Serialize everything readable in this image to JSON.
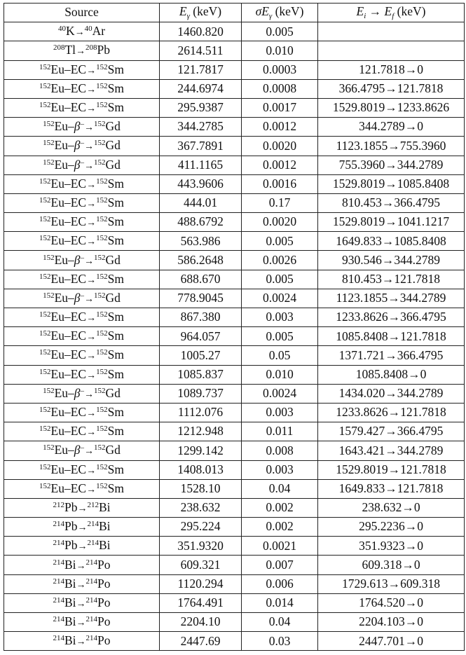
{
  "header": {
    "source": "Source",
    "egamma": {
      "sym": "E",
      "sub": "γ",
      "unit": " (keV)"
    },
    "sigma": {
      "pre": "σE",
      "sub": "γ",
      "unit": " (keV)"
    },
    "transition": {
      "ei": "E",
      "ei_sub": "i",
      "arrow": " → ",
      "ef": "E",
      "ef_sub": "f",
      "unit": " (keV)"
    }
  },
  "arrow": "→",
  "rows": [
    {
      "pm": "40",
      "p": "K",
      "mode": "",
      "msup": "",
      "dm": "40",
      "d": "Ar",
      "e": "1460.820",
      "s": "0.005",
      "t": ""
    },
    {
      "pm": "208",
      "p": "Tl",
      "mode": "",
      "msup": "",
      "dm": "208",
      "d": "Pb",
      "e": "2614.511",
      "s": "0.010",
      "t": ""
    },
    {
      "pm": "152",
      "p": "Eu–EC",
      "mode": "",
      "msup": "",
      "dm": "152",
      "d": "Sm",
      "e": "121.7817",
      "s": "0.0003",
      "t": "121.7818→0"
    },
    {
      "pm": "152",
      "p": "Eu–EC",
      "mode": "",
      "msup": "",
      "dm": "152",
      "d": "Sm",
      "e": "244.6974",
      "s": "0.0008",
      "t": "366.4795→121.7818"
    },
    {
      "pm": "152",
      "p": "Eu–EC",
      "mode": "",
      "msup": "",
      "dm": "152",
      "d": "Sm",
      "e": "295.9387",
      "s": "0.0017",
      "t": "1529.8019→1233.8626"
    },
    {
      "pm": "152",
      "p": "Eu–",
      "mode": "β",
      "msup": "–",
      "dm": "152",
      "d": "Gd",
      "e": "344.2785",
      "s": "0.0012",
      "t": "344.2789→0"
    },
    {
      "pm": "152",
      "p": "Eu–",
      "mode": "β",
      "msup": "–",
      "dm": "152",
      "d": "Gd",
      "e": "367.7891",
      "s": "0.0020",
      "t": "1123.1855→755.3960"
    },
    {
      "pm": "152",
      "p": "Eu–",
      "mode": "β",
      "msup": "–",
      "dm": "152",
      "d": "Gd",
      "e": "411.1165",
      "s": "0.0012",
      "t": "755.3960→344.2789"
    },
    {
      "pm": "152",
      "p": "Eu–EC",
      "mode": "",
      "msup": "",
      "dm": "152",
      "d": "Sm",
      "e": "443.9606",
      "s": "0.0016",
      "t": "1529.8019→1085.8408"
    },
    {
      "pm": "152",
      "p": "Eu–EC",
      "mode": "",
      "msup": "",
      "dm": "152",
      "d": "Sm",
      "e": "444.01",
      "s": "0.17",
      "t": "810.453→366.4795"
    },
    {
      "pm": "152",
      "p": "Eu–EC",
      "mode": "",
      "msup": "",
      "dm": "152",
      "d": "Sm",
      "e": "488.6792",
      "s": "0.0020",
      "t": "1529.8019→1041.1217"
    },
    {
      "pm": "152",
      "p": "Eu–EC",
      "mode": "",
      "msup": "",
      "dm": "152",
      "d": "Sm",
      "e": "563.986",
      "s": "0.005",
      "t": "1649.833→1085.8408"
    },
    {
      "pm": "152",
      "p": "Eu–",
      "mode": "β",
      "msup": "–",
      "dm": "152",
      "d": "Gd",
      "e": "586.2648",
      "s": "0.0026",
      "t": "930.546→344.2789"
    },
    {
      "pm": "152",
      "p": "Eu–EC",
      "mode": "",
      "msup": "",
      "dm": "152",
      "d": "Sm",
      "e": "688.670",
      "s": "0.005",
      "t": "810.453→121.7818"
    },
    {
      "pm": "152",
      "p": "Eu–",
      "mode": "β",
      "msup": "–",
      "dm": "152",
      "d": "Gd",
      "e": "778.9045",
      "s": "0.0024",
      "t": "1123.1855→344.2789"
    },
    {
      "pm": "152",
      "p": "Eu–EC",
      "mode": "",
      "msup": "",
      "dm": "152",
      "d": "Sm",
      "e": "867.380",
      "s": "0.003",
      "t": "1233.8626→366.4795"
    },
    {
      "pm": "152",
      "p": "Eu–EC",
      "mode": "",
      "msup": "",
      "dm": "152",
      "d": "Sm",
      "e": "964.057",
      "s": "0.005",
      "t": "1085.8408→121.7818"
    },
    {
      "pm": "152",
      "p": "Eu–EC",
      "mode": "",
      "msup": "",
      "dm": "152",
      "d": "Sm",
      "e": "1005.27",
      "s": "0.05",
      "t": "1371.721→366.4795"
    },
    {
      "pm": "152",
      "p": "Eu–EC",
      "mode": "",
      "msup": "",
      "dm": "152",
      "d": "Sm",
      "e": "1085.837",
      "s": "0.010",
      "t": "1085.8408→0"
    },
    {
      "pm": "152",
      "p": "Eu–",
      "mode": "β",
      "msup": "–",
      "dm": "152",
      "d": "Gd",
      "e": "1089.737",
      "s": "0.0024",
      "t": "1434.020→344.2789"
    },
    {
      "pm": "152",
      "p": "Eu–EC",
      "mode": "",
      "msup": "",
      "dm": "152",
      "d": "Sm",
      "e": "1112.076",
      "s": "0.003",
      "t": "1233.8626→121.7818"
    },
    {
      "pm": "152",
      "p": "Eu–EC",
      "mode": "",
      "msup": "",
      "dm": "152",
      "d": "Sm",
      "e": "1212.948",
      "s": "0.011",
      "t": "1579.427→366.4795"
    },
    {
      "pm": "152",
      "p": "Eu–",
      "mode": "β",
      "msup": "–",
      "dm": "152",
      "d": "Gd",
      "e": "1299.142",
      "s": "0.008",
      "t": "1643.421→344.2789"
    },
    {
      "pm": "152",
      "p": "Eu–EC",
      "mode": "",
      "msup": "",
      "dm": "152",
      "d": "Sm",
      "e": "1408.013",
      "s": "0.003",
      "t": "1529.8019→121.7818"
    },
    {
      "pm": "152",
      "p": "Eu–EC",
      "mode": "",
      "msup": "",
      "dm": "152",
      "d": "Sm",
      "e": "1528.10",
      "s": "0.04",
      "t": "1649.833→121.7818"
    },
    {
      "pm": "212",
      "p": "Pb",
      "mode": "",
      "msup": "",
      "dm": "212",
      "d": "Bi",
      "e": "238.632",
      "s": "0.002",
      "t": "238.632→0"
    },
    {
      "pm": "214",
      "p": "Pb",
      "mode": "",
      "msup": "",
      "dm": "214",
      "d": "Bi",
      "e": "295.224",
      "s": "0.002",
      "t": "295.2236→0"
    },
    {
      "pm": "214",
      "p": "Pb",
      "mode": "",
      "msup": "",
      "dm": "214",
      "d": "Bi",
      "e": "351.9320",
      "s": "0.0021",
      "t": "351.9323→0"
    },
    {
      "pm": "214",
      "p": "Bi",
      "mode": "",
      "msup": "",
      "dm": "214",
      "d": "Po",
      "e": "609.321",
      "s": "0.007",
      "t": "609.318→0"
    },
    {
      "pm": "214",
      "p": "Bi",
      "mode": "",
      "msup": "",
      "dm": "214",
      "d": "Po",
      "e": "1120.294",
      "s": "0.006",
      "t": "1729.613→609.318"
    },
    {
      "pm": "214",
      "p": "Bi",
      "mode": "",
      "msup": "",
      "dm": "214",
      "d": "Po",
      "e": "1764.491",
      "s": "0.014",
      "t": "1764.520→0"
    },
    {
      "pm": "214",
      "p": "Bi",
      "mode": "",
      "msup": "",
      "dm": "214",
      "d": "Po",
      "e": "2204.10",
      "s": "0.04",
      "t": "2204.103→0"
    },
    {
      "pm": "214",
      "p": "Bi",
      "mode": "",
      "msup": "",
      "dm": "214",
      "d": "Po",
      "e": "2447.69",
      "s": "0.03",
      "t": "2447.701→0"
    }
  ]
}
